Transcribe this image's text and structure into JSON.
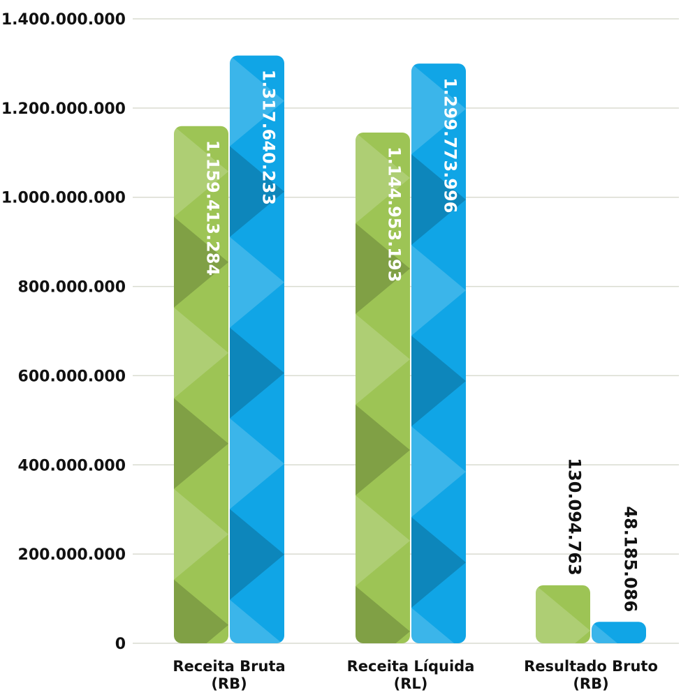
{
  "chart_data": {
    "type": "bar",
    "title": "",
    "xlabel": "",
    "ylabel": "",
    "categories": [
      [
        "Receita Bruta",
        "(RB)"
      ],
      [
        "Receita Líquida",
        "(RL)"
      ],
      [
        "Resultado Bruto",
        "(RB)"
      ]
    ],
    "series": [
      {
        "color": "#9DC455",
        "values": [
          1159413284,
          1144953193,
          130094763
        ],
        "labels": [
          "1.159.413.284",
          "1.144.953.193",
          "130.094.763"
        ]
      },
      {
        "color": "#10A5E6",
        "values": [
          1317640233,
          1299773996,
          48185086
        ],
        "labels": [
          "1.317.640.233",
          "1.299.773.996",
          "48.185.086"
        ]
      }
    ],
    "ylim": [
      0,
      1400000000
    ],
    "yticks": [
      0,
      200000000,
      400000000,
      600000000,
      800000000,
      1000000000,
      1200000000,
      1400000000
    ],
    "ytick_labels": [
      "0",
      "200.000.000",
      "400.000.000",
      "600.000.000",
      "800.000.000",
      "1.000.000.000",
      "1.200.000.000",
      "1.400.000.000"
    ],
    "grid": true,
    "legend": "none",
    "gridline_color": "#D9DBD0",
    "label_inside_color": "#FFFFFF",
    "label_outside_color": "#111111"
  }
}
